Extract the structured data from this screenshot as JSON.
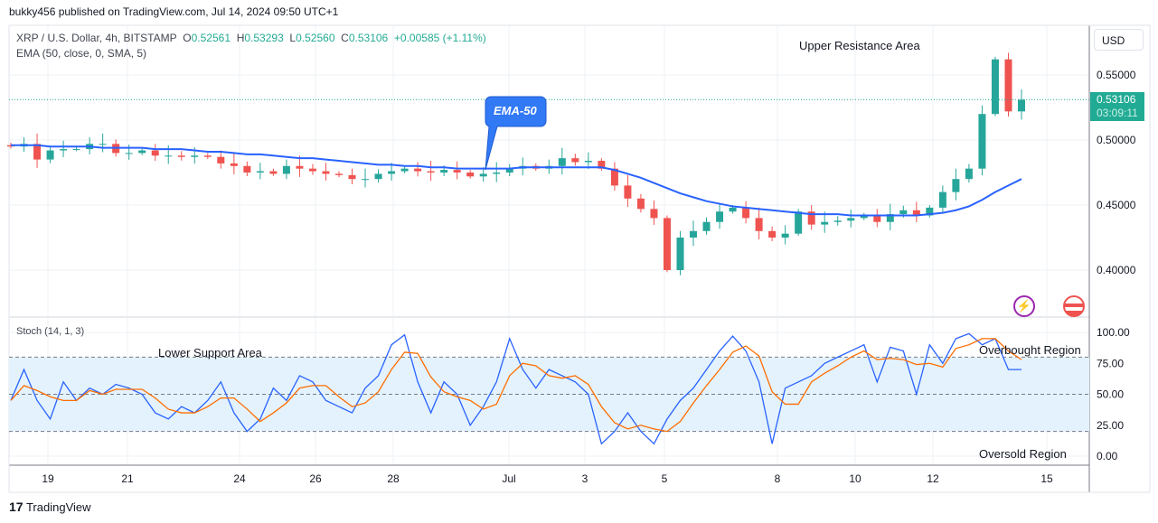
{
  "header": {
    "published": "bukky456 published on TradingView.com, Jul 14, 2024 09:50 UTC+1"
  },
  "legend": {
    "symbol": "XRP / U.S. Dollar, 4h, BITSTAMP",
    "o_label": "O",
    "o": "0.52561",
    "h_label": "H",
    "h": "0.53293",
    "l_label": "L",
    "l": "0.52560",
    "c_label": "C",
    "c": "0.53106",
    "change": "+0.00585 (+1.11%)",
    "ema": "EMA (50, close, 0, SMA, 5)",
    "stoch": "Stoch (14, 1, 3)"
  },
  "price_scale": {
    "currency": "USD",
    "current_price": "0.53106",
    "countdown": "03:09:11"
  },
  "annotations": {
    "upper": "Upper Resistance Area",
    "lower": "Lower Support Area",
    "overbought": "Overbought Region",
    "oversold": "Oversold Region",
    "ema_callout": "EMA-50"
  },
  "brand": "TradingView",
  "colors": {
    "up": "#26a69a",
    "down": "#ef5350",
    "ema": "#2962ff",
    "k": "#2962ff",
    "d": "#ff6d00",
    "band": "#e3f2fd",
    "price_tag": "#22ab94"
  },
  "chart_data": [
    {
      "type": "candlestick",
      "ylim": [
        0.37,
        0.575
      ],
      "y_ticks": [
        "0.55000",
        "0.50000",
        "0.45000",
        "0.40000"
      ],
      "y_tick_values": [
        0.55,
        0.5,
        0.45,
        0.4
      ],
      "x_ticks": [
        "19",
        "21",
        "24",
        "26",
        "28",
        "Jul",
        "3",
        "5",
        "8",
        "10",
        "12",
        "15"
      ],
      "grid": true,
      "close": [
        0.495,
        0.497,
        0.485,
        0.492,
        0.493,
        0.493,
        0.497,
        0.497,
        0.49,
        0.49,
        0.492,
        0.488,
        0.488,
        0.487,
        0.488,
        0.487,
        0.482,
        0.48,
        0.475,
        0.476,
        0.474,
        0.48,
        0.478,
        0.476,
        0.474,
        0.473,
        0.47,
        0.47,
        0.474,
        0.476,
        0.478,
        0.476,
        0.475,
        0.477,
        0.475,
        0.472,
        0.474,
        0.475,
        0.478,
        0.48,
        0.478,
        0.48,
        0.486,
        0.483,
        0.484,
        0.478,
        0.465,
        0.455,
        0.447,
        0.44,
        0.4,
        0.425,
        0.43,
        0.437,
        0.445,
        0.448,
        0.44,
        0.43,
        0.425,
        0.428,
        0.445,
        0.435,
        0.437,
        0.438,
        0.44,
        0.442,
        0.437,
        0.443,
        0.446,
        0.442,
        0.448,
        0.46,
        0.47,
        0.478,
        0.52,
        0.562,
        0.522,
        0.531
      ],
      "ema50": [
        0.496,
        0.496,
        0.496,
        0.495,
        0.495,
        0.495,
        0.495,
        0.494,
        0.494,
        0.494,
        0.494,
        0.493,
        0.493,
        0.493,
        0.492,
        0.491,
        0.491,
        0.49,
        0.489,
        0.489,
        0.488,
        0.487,
        0.486,
        0.486,
        0.485,
        0.484,
        0.483,
        0.482,
        0.481,
        0.481,
        0.48,
        0.48,
        0.479,
        0.479,
        0.478,
        0.478,
        0.478,
        0.478,
        0.478,
        0.479,
        0.479,
        0.479,
        0.479,
        0.479,
        0.479,
        0.479,
        0.477,
        0.474,
        0.471,
        0.467,
        0.463,
        0.459,
        0.456,
        0.453,
        0.451,
        0.449,
        0.448,
        0.447,
        0.446,
        0.445,
        0.444,
        0.443,
        0.443,
        0.443,
        0.442,
        0.442,
        0.442,
        0.442,
        0.442,
        0.442,
        0.443,
        0.444,
        0.446,
        0.449,
        0.454,
        0.46,
        0.465,
        0.47
      ]
    },
    {
      "type": "line",
      "title": "Stoch (14, 1, 3)",
      "ylim": [
        0,
        100
      ],
      "y_ticks": [
        "100.00",
        "75.00",
        "50.00",
        "25.00",
        "0.00"
      ],
      "y_tick_values": [
        100,
        75,
        50,
        25,
        0
      ],
      "bands": [
        80,
        50,
        20
      ],
      "series": [
        {
          "key": "k",
          "values": [
            45,
            70,
            45,
            30,
            60,
            45,
            55,
            50,
            58,
            55,
            50,
            35,
            30,
            40,
            35,
            45,
            60,
            35,
            20,
            30,
            55,
            45,
            65,
            60,
            45,
            40,
            35,
            55,
            65,
            90,
            98,
            60,
            35,
            60,
            50,
            25,
            40,
            60,
            95,
            70,
            55,
            70,
            65,
            60,
            50,
            10,
            20,
            35,
            20,
            10,
            30,
            45,
            55,
            70,
            85,
            97,
            85,
            60,
            10,
            55,
            60,
            65,
            75,
            80,
            85,
            90,
            60,
            88,
            85,
            50,
            90,
            75,
            95,
            99,
            90,
            95,
            70,
            70
          ]
        },
        {
          "key": "d",
          "values": [
            45,
            57,
            53,
            48,
            45,
            45,
            53,
            50,
            54,
            54,
            54,
            47,
            38,
            35,
            35,
            40,
            47,
            47,
            38,
            28,
            35,
            43,
            55,
            57,
            57,
            48,
            40,
            43,
            52,
            70,
            84,
            83,
            64,
            52,
            48,
            45,
            38,
            42,
            65,
            75,
            73,
            65,
            63,
            65,
            58,
            40,
            27,
            22,
            25,
            22,
            20,
            28,
            43,
            57,
            70,
            84,
            89,
            81,
            52,
            42,
            42,
            60,
            67,
            73,
            80,
            85,
            78,
            79,
            78,
            74,
            75,
            72,
            87,
            90,
            95,
            95,
            85,
            78
          ]
        }
      ]
    }
  ]
}
